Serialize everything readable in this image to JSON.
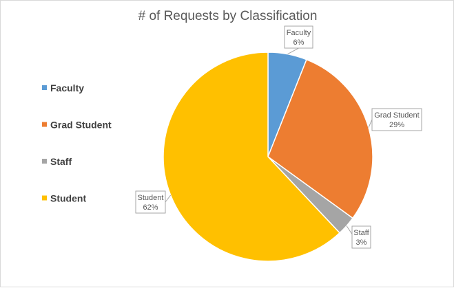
{
  "chart_data": {
    "type": "pie",
    "title": "# of Requests by Classification",
    "categories": [
      "Faculty",
      "Grad Student",
      "Staff",
      "Student"
    ],
    "values": [
      6,
      29,
      3,
      62
    ],
    "value_labels": [
      "6%",
      "29%",
      "3%",
      "62%"
    ],
    "colors": [
      "#5b9bd5",
      "#ed7d31",
      "#a5a5a5",
      "#ffc000"
    ],
    "legend_position": "left",
    "data_labels": "category-and-percentage callouts"
  }
}
